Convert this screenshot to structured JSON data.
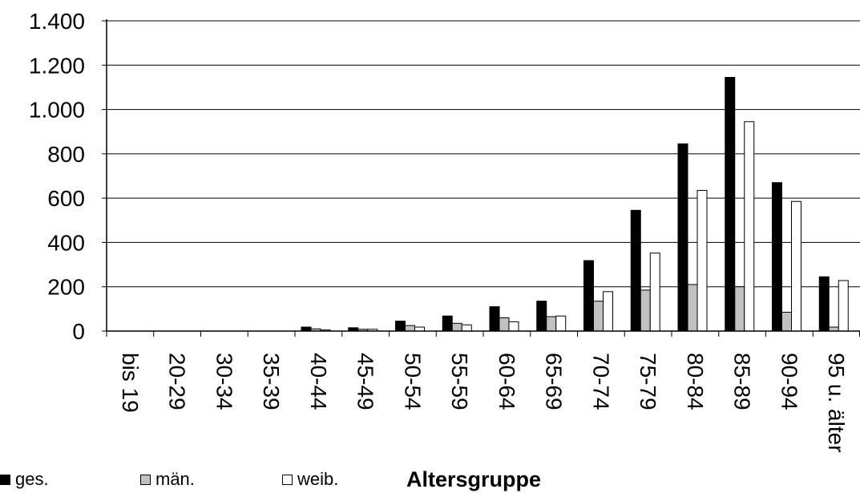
{
  "chart_data": {
    "type": "bar",
    "xlabel": "Altersgruppe",
    "ylabel": "",
    "ylim": [
      0,
      1400
    ],
    "yticks": [
      0,
      200,
      400,
      600,
      800,
      1000,
      1200,
      1400
    ],
    "ytick_labels": [
      "0",
      "200",
      "400",
      "600",
      "800",
      "1.000",
      "1.200",
      "1.400"
    ],
    "grid": true,
    "legend_position": "bottom-left",
    "categories": [
      "bis 19",
      "20-29",
      "30-34",
      "35-39",
      "40-44",
      "45-49",
      "50-54",
      "55-59",
      "60-64",
      "65-69",
      "70-74",
      "75-79",
      "80-84",
      "85-89",
      "90-94",
      "95 u. älter"
    ],
    "series": [
      {
        "name": "ges.",
        "color": "#000000",
        "values": [
          0,
          0,
          0,
          0,
          18,
          15,
          45,
          68,
          110,
          135,
          318,
          545,
          845,
          1145,
          670,
          245
        ]
      },
      {
        "name": "män.",
        "color": "#c0c0c0",
        "values": [
          0,
          0,
          0,
          0,
          10,
          8,
          25,
          35,
          60,
          65,
          135,
          185,
          210,
          200,
          85,
          18
        ]
      },
      {
        "name": "weib.",
        "color": "#ffffff",
        "values": [
          0,
          0,
          0,
          0,
          5,
          8,
          18,
          28,
          42,
          68,
          178,
          352,
          635,
          945,
          585,
          228
        ]
      }
    ]
  }
}
